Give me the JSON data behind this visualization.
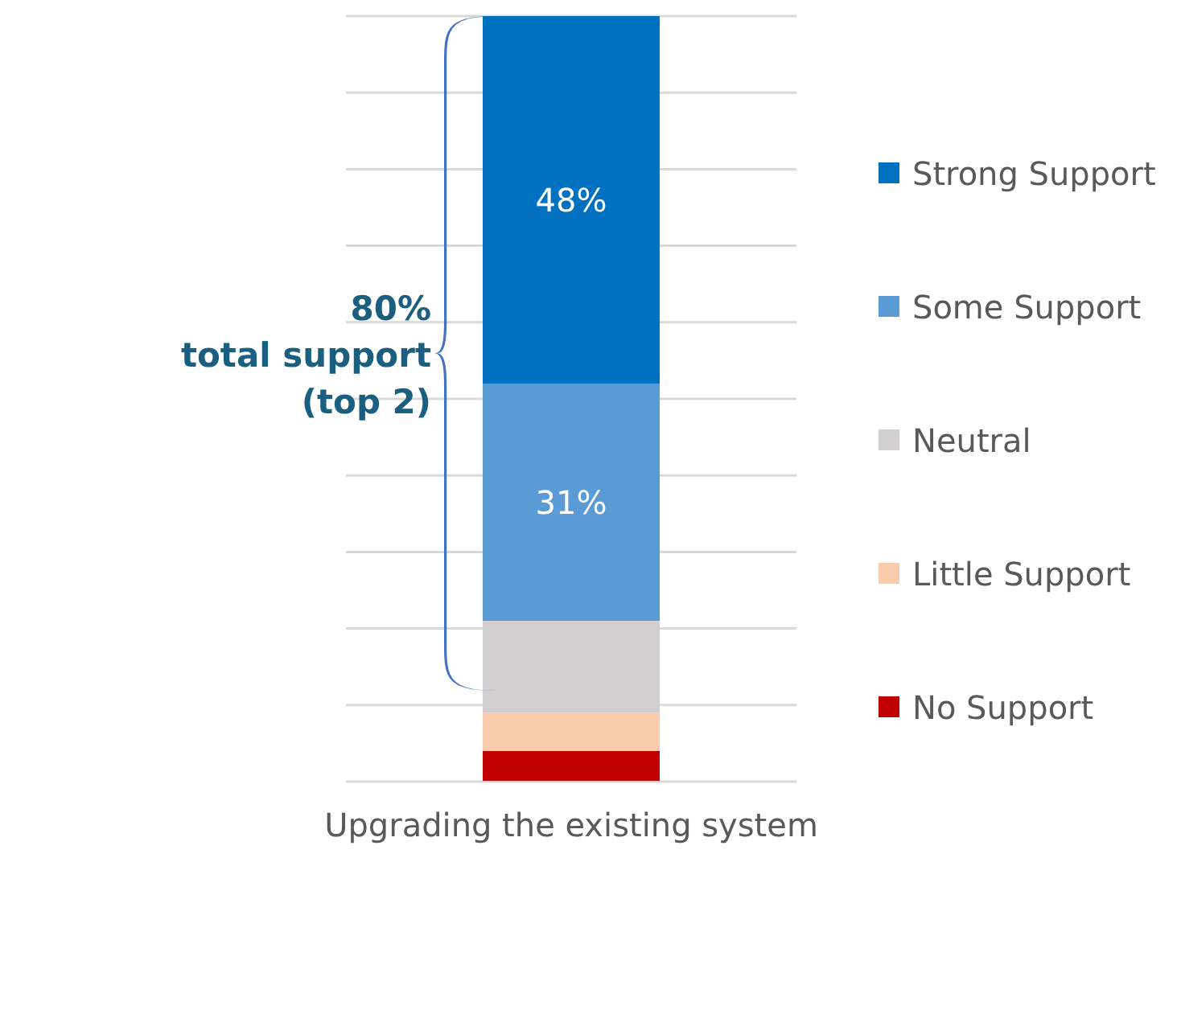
{
  "chart_data": {
    "type": "bar",
    "stacked": true,
    "categories": [
      "Upgrading the existing system"
    ],
    "series": [
      {
        "name": "No Support",
        "color": "#c00000",
        "values": [
          4
        ],
        "value_labels": [
          null
        ]
      },
      {
        "name": "Little Support",
        "color": "#f8cbad",
        "values": [
          5
        ],
        "value_labels": [
          null
        ]
      },
      {
        "name": "Neutral",
        "color": "#d0cece",
        "values": [
          12
        ],
        "value_labels": [
          null
        ]
      },
      {
        "name": "Some Support",
        "color": "#5b9bd5",
        "values": [
          31
        ],
        "value_labels": [
          "31%"
        ]
      },
      {
        "name": "Strong Support",
        "color": "#0070c0",
        "values": [
          48
        ],
        "value_labels": [
          "48%"
        ]
      }
    ],
    "ylim": [
      0,
      100
    ],
    "yticks": [
      {
        "value": 0,
        "label": null
      },
      {
        "value": 10,
        "label": null
      },
      {
        "value": 20,
        "label": null
      },
      {
        "value": 30,
        "label": null
      },
      {
        "value": 40,
        "label": null
      },
      {
        "value": 50,
        "label": null
      },
      {
        "value": 60,
        "label": null
      },
      {
        "value": 70,
        "label": null
      },
      {
        "value": 80,
        "label": null
      },
      {
        "value": 90,
        "label": null
      },
      {
        "value": 100,
        "label": null
      }
    ],
    "grid": "y",
    "tick_labels": "x",
    "legend": "right",
    "annotations": [
      "80%\ntotal support\n(top 2)"
    ]
  }
}
